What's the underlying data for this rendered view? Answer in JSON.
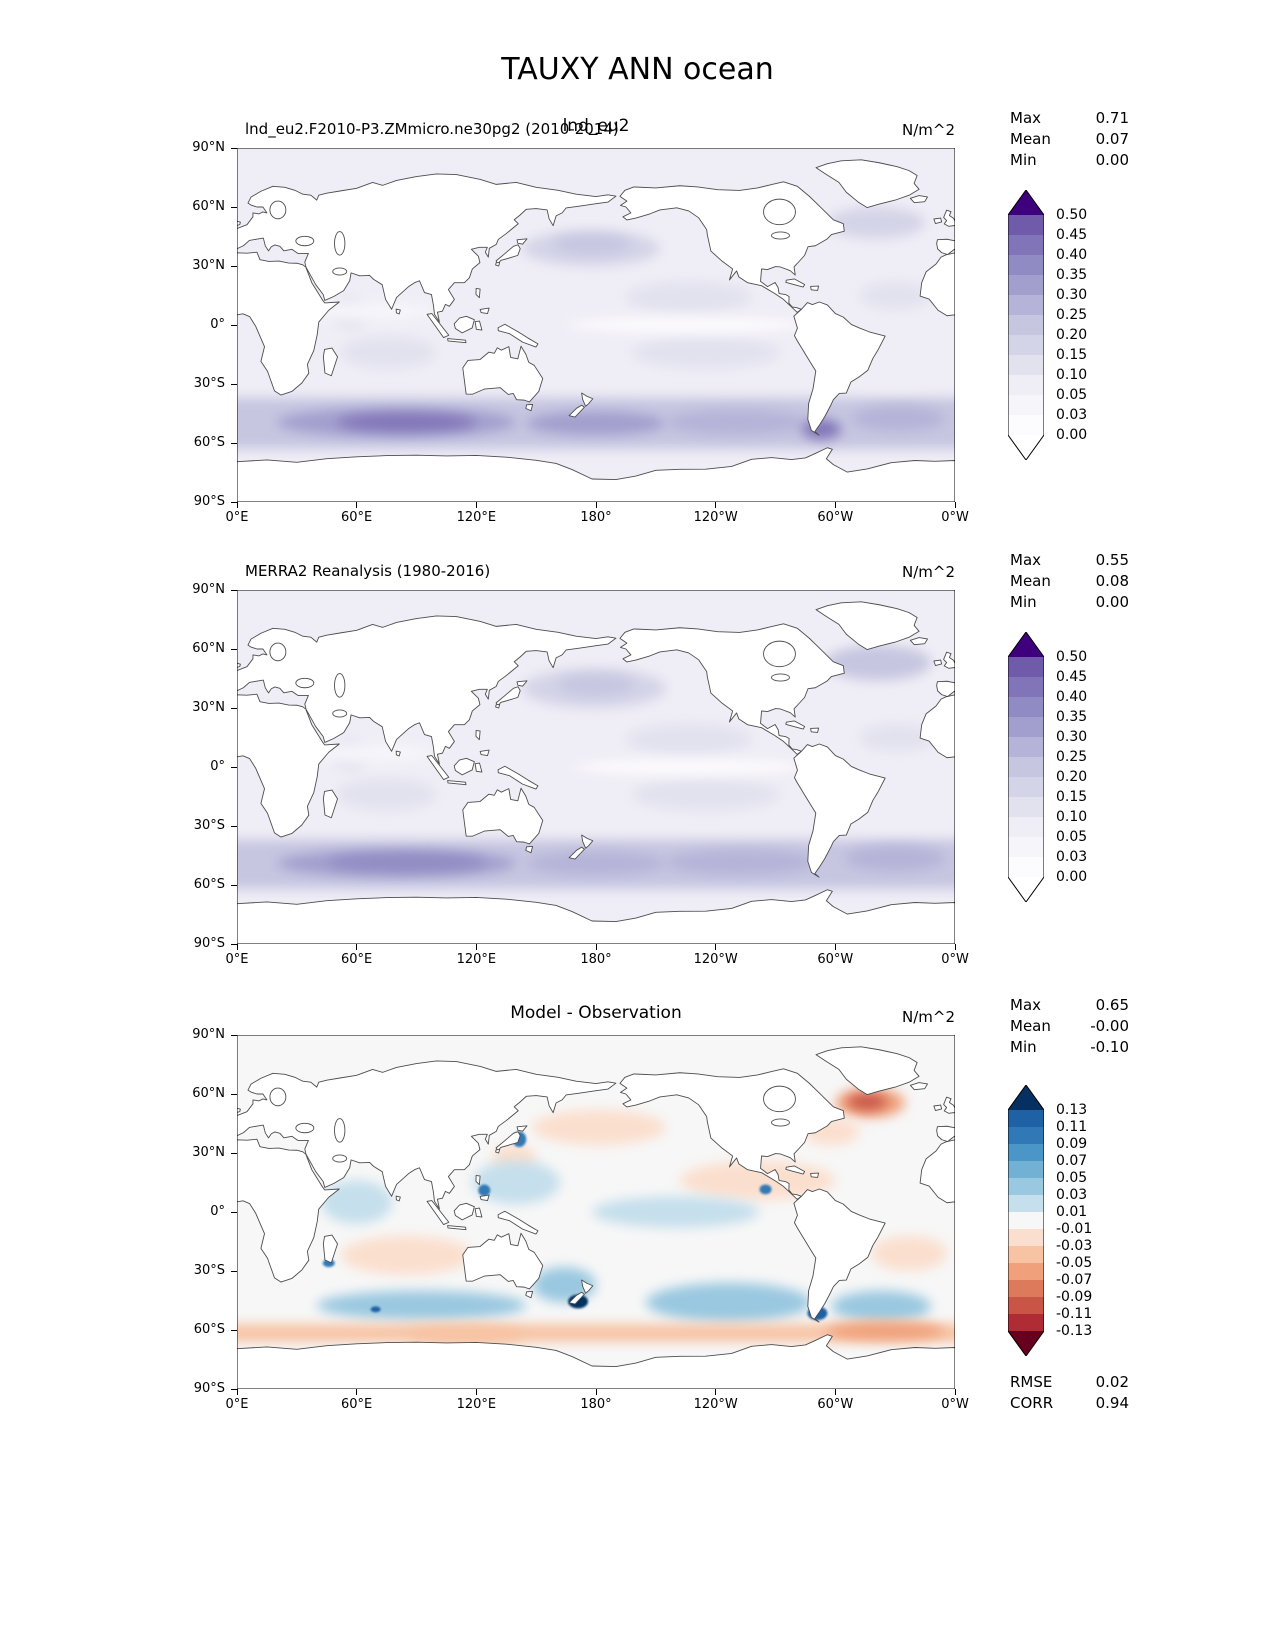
{
  "page_title": "TAUXY ANN ocean",
  "axes": {
    "lat_ticks": [
      "90°N",
      "60°N",
      "30°N",
      "0°",
      "30°S",
      "60°S",
      "90°S"
    ],
    "lon_ticks": [
      "0°E",
      "60°E",
      "120°E",
      "180°",
      "120°W",
      "60°W",
      "0°W"
    ]
  },
  "colormaps": {
    "purples": {
      "levels": [
        0.0,
        0.03,
        0.05,
        0.1,
        0.15,
        0.2,
        0.25,
        0.3,
        0.35,
        0.4,
        0.45,
        0.5
      ],
      "colors": [
        "#fcfbfd",
        "#f6f5fa",
        "#efedf5",
        "#e2e2ef",
        "#d4d4e8",
        "#c6c6e1",
        "#b5b4d8",
        "#a29fce",
        "#918bc3",
        "#8174b8",
        "#705bab"
      ],
      "over": "#3f007d",
      "under": "#ffffff"
    },
    "diverging": {
      "levels": [
        -0.13,
        -0.11,
        -0.09,
        -0.07,
        -0.05,
        -0.03,
        -0.01,
        0.01,
        0.03,
        0.05,
        0.07,
        0.09,
        0.11,
        0.13
      ],
      "colors": [
        "#b02c35",
        "#c85546",
        "#dd7a5c",
        "#f0a07a",
        "#f7c3a3",
        "#fbdfce",
        "#f7f7f7",
        "#c5dfec",
        "#9ac8e0",
        "#72b1d3",
        "#4a96c6",
        "#3079b6",
        "#1e61a5"
      ],
      "over": "#053061",
      "under": "#67001f"
    }
  },
  "chart_data": [
    {
      "type": "heatmap",
      "kind": "global-filled-contour-map",
      "projection": "equirectangular 0-360E",
      "title_left": "lnd_eu2.F2010-P3.ZMmicro.ne30pg2 (2010-2014)",
      "title_center": "lnd_eu2",
      "units": "N/m^2",
      "stats": [
        [
          "Max",
          "0.71"
        ],
        [
          "Mean",
          "0.07"
        ],
        [
          "Min",
          "0.00"
        ]
      ],
      "colormap": "purples",
      "colorbar_labels": [
        "0.50",
        "0.45",
        "0.40",
        "0.35",
        "0.30",
        "0.25",
        "0.20",
        "0.15",
        "0.10",
        "0.05",
        "0.03",
        "0.00"
      ],
      "ocean_base": 0.07,
      "features": [
        {
          "lon": [
            0,
            360
          ],
          "lat": [
            -63,
            -37
          ],
          "v": 0.22
        },
        {
          "lon": [
            20,
            140
          ],
          "lat": [
            -57,
            -42
          ],
          "v": 0.32
        },
        {
          "lon": [
            50,
            120
          ],
          "lat": [
            -54,
            -45
          ],
          "v": 0.42
        },
        {
          "lon": [
            145,
            215
          ],
          "lat": [
            -56,
            -44
          ],
          "v": 0.3
        },
        {
          "lon": [
            215,
            285
          ],
          "lat": [
            -56,
            -43
          ],
          "v": 0.28
        },
        {
          "lon": [
            283,
            303
          ],
          "lat": [
            -58,
            -48
          ],
          "v": 0.4
        },
        {
          "lon": [
            308,
            355
          ],
          "lat": [
            -54,
            -41
          ],
          "v": 0.28
        },
        {
          "lon": [
            143,
            212
          ],
          "lat": [
            30,
            48
          ],
          "v": 0.17
        },
        {
          "lon": [
            158,
            198
          ],
          "lat": [
            36,
            46
          ],
          "v": 0.22
        },
        {
          "lon": [
            296,
            345
          ],
          "lat": [
            44,
            60
          ],
          "v": 0.18
        },
        {
          "lon": [
            195,
            258
          ],
          "lat": [
            6,
            22
          ],
          "v": 0.12
        },
        {
          "lon": [
            312,
            348
          ],
          "lat": [
            8,
            22
          ],
          "v": 0.1
        },
        {
          "lon": [
            52,
            100
          ],
          "lat": [
            -22,
            -6
          ],
          "v": 0.12
        },
        {
          "lon": [
            48,
            66
          ],
          "lat": [
            -2,
            14
          ],
          "v": 0.13
        },
        {
          "lon": [
            198,
            272
          ],
          "lat": [
            -22,
            -6
          ],
          "v": 0.1
        },
        {
          "lon": [
            165,
            285
          ],
          "lat": [
            -4,
            4
          ],
          "v": 0.02
        },
        {
          "lon": [
            35,
            100
          ],
          "lat": [
            2,
            12
          ],
          "v": 0.04
        },
        {
          "lon": [
            0,
            360
          ],
          "lat": [
            66,
            80
          ],
          "v": 0.05
        },
        {
          "lon": [
            310,
            350
          ],
          "lat": [
            -32,
            -15
          ],
          "v": 0.09
        }
      ]
    },
    {
      "type": "heatmap",
      "kind": "global-filled-contour-map",
      "projection": "equirectangular 0-360E",
      "title_left": "MERRA2 Reanalysis (1980-2016)",
      "title_center": "",
      "units": "N/m^2",
      "stats": [
        [
          "Max",
          "0.55"
        ],
        [
          "Mean",
          "0.08"
        ],
        [
          "Min",
          "0.00"
        ]
      ],
      "colormap": "purples",
      "colorbar_labels": [
        "0.50",
        "0.45",
        "0.40",
        "0.35",
        "0.30",
        "0.25",
        "0.20",
        "0.15",
        "0.10",
        "0.05",
        "0.03",
        "0.00"
      ],
      "ocean_base": 0.07,
      "features": [
        {
          "lon": [
            0,
            360
          ],
          "lat": [
            -62,
            -37
          ],
          "v": 0.22
        },
        {
          "lon": [
            20,
            140
          ],
          "lat": [
            -56,
            -42
          ],
          "v": 0.3
        },
        {
          "lon": [
            45,
            125
          ],
          "lat": [
            -53,
            -44
          ],
          "v": 0.37
        },
        {
          "lon": [
            145,
            215
          ],
          "lat": [
            -55,
            -43
          ],
          "v": 0.28
        },
        {
          "lon": [
            215,
            290
          ],
          "lat": [
            -55,
            -42
          ],
          "v": 0.28
        },
        {
          "lon": [
            305,
            355
          ],
          "lat": [
            -53,
            -40
          ],
          "v": 0.26
        },
        {
          "lon": [
            143,
            215
          ],
          "lat": [
            30,
            50
          ],
          "v": 0.18
        },
        {
          "lon": [
            160,
            200
          ],
          "lat": [
            36,
            47
          ],
          "v": 0.22
        },
        {
          "lon": [
            295,
            348
          ],
          "lat": [
            44,
            62
          ],
          "v": 0.2
        },
        {
          "lon": [
            195,
            258
          ],
          "lat": [
            6,
            22
          ],
          "v": 0.12
        },
        {
          "lon": [
            312,
            350
          ],
          "lat": [
            8,
            22
          ],
          "v": 0.1
        },
        {
          "lon": [
            50,
            100
          ],
          "lat": [
            -22,
            -6
          ],
          "v": 0.13
        },
        {
          "lon": [
            48,
            66
          ],
          "lat": [
            -2,
            14
          ],
          "v": 0.12
        },
        {
          "lon": [
            198,
            272
          ],
          "lat": [
            -22,
            -6
          ],
          "v": 0.1
        },
        {
          "lon": [
            168,
            285
          ],
          "lat": [
            -4,
            4
          ],
          "v": 0.02
        },
        {
          "lon": [
            35,
            100
          ],
          "lat": [
            2,
            12
          ],
          "v": 0.04
        },
        {
          "lon": [
            0,
            360
          ],
          "lat": [
            66,
            80
          ],
          "v": 0.06
        }
      ]
    },
    {
      "type": "heatmap",
      "kind": "global-filled-contour-map-difference",
      "projection": "equirectangular 0-360E",
      "title_left": "",
      "title_center": "Model - Observation",
      "units": "N/m^2",
      "stats": [
        [
          "Max",
          "0.65"
        ],
        [
          "Mean",
          "-0.00"
        ],
        [
          "Min",
          "-0.10"
        ]
      ],
      "metrics": [
        [
          "RMSE",
          "0.02"
        ],
        [
          "CORR",
          "0.94"
        ]
      ],
      "colormap": "diverging",
      "colorbar_labels": [
        "0.13",
        "0.11",
        "0.09",
        "0.07",
        "0.05",
        "0.03",
        "0.01",
        "-0.01",
        "-0.03",
        "-0.05",
        "-0.07",
        "-0.09",
        "-0.11",
        "-0.13"
      ],
      "ocean_base": 0.0,
      "features": [
        {
          "lon": [
            300,
            335
          ],
          "lat": [
            48,
            63
          ],
          "v": -0.06
        },
        {
          "lon": [
            306,
            326
          ],
          "lat": [
            52,
            60
          ],
          "v": -0.095
        },
        {
          "lon": [
            284,
            312
          ],
          "lat": [
            34,
            48
          ],
          "v": -0.03
        },
        {
          "lon": [
            148,
            215
          ],
          "lat": [
            34,
            52
          ],
          "v": -0.03
        },
        {
          "lon": [
            128,
            150
          ],
          "lat": [
            18,
            35
          ],
          "v": -0.02
        },
        {
          "lon": [
            222,
            300
          ],
          "lat": [
            6,
            26
          ],
          "v": -0.025
        },
        {
          "lon": [
            42,
            78
          ],
          "lat": [
            -6,
            16
          ],
          "v": 0.02
        },
        {
          "lon": [
            118,
            162
          ],
          "lat": [
            4,
            26
          ],
          "v": 0.02
        },
        {
          "lon": [
            52,
            118
          ],
          "lat": [
            -32,
            -12
          ],
          "v": -0.025
        },
        {
          "lon": [
            318,
            356
          ],
          "lat": [
            -30,
            -12
          ],
          "v": -0.02
        },
        {
          "lon": [
            205,
            288
          ],
          "lat": [
            -56,
            -36
          ],
          "v": 0.045
        },
        {
          "lon": [
            40,
            145
          ],
          "lat": [
            -55,
            -40
          ],
          "v": 0.03
        },
        {
          "lon": [
            148,
            180
          ],
          "lat": [
            -46,
            -28
          ],
          "v": 0.035
        },
        {
          "lon": [
            298,
            348
          ],
          "lat": [
            -56,
            -40
          ],
          "v": 0.035
        },
        {
          "lon": [
            0,
            360
          ],
          "lat": [
            -66,
            -57
          ],
          "v": -0.035
        },
        {
          "lon": [
            295,
            355
          ],
          "lat": [
            -65,
            -56
          ],
          "v": -0.055
        },
        {
          "lon": [
            85,
            145
          ],
          "lat": [
            -67,
            -58
          ],
          "v": -0.045
        },
        {
          "lon": [
            178,
            262
          ],
          "lat": [
            -8,
            8
          ],
          "v": 0.015
        },
        {
          "lon": [
            166,
            176
          ],
          "lat": [
            -49,
            -42
          ],
          "v": 0.13,
          "sharp": true
        },
        {
          "lon": [
            286,
            296
          ],
          "lat": [
            -55,
            -48
          ],
          "v": 0.12,
          "sharp": true
        },
        {
          "lon": [
            67,
            72
          ],
          "lat": [
            -51,
            -48
          ],
          "v": 0.12,
          "sharp": true
        },
        {
          "lon": [
            138,
            145
          ],
          "lat": [
            33,
            41
          ],
          "v": 0.1,
          "sharp": true
        },
        {
          "lon": [
            121,
            127
          ],
          "lat": [
            8,
            14
          ],
          "v": 0.1,
          "sharp": true
        },
        {
          "lon": [
            262,
            268
          ],
          "lat": [
            9,
            14
          ],
          "v": 0.1,
          "sharp": true
        },
        {
          "lon": [
            43,
            49
          ],
          "lat": [
            -28,
            -24
          ],
          "v": 0.1,
          "sharp": true
        }
      ]
    }
  ]
}
